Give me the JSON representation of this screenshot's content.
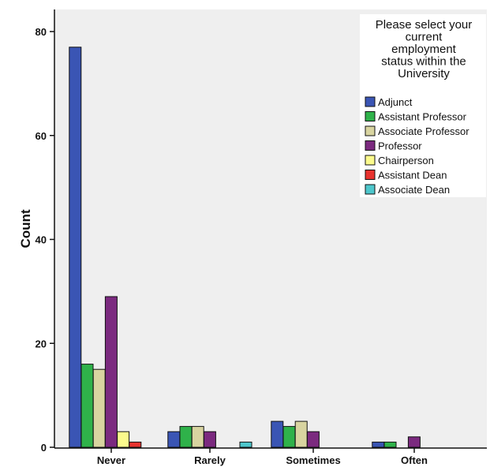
{
  "chart_data": {
    "type": "bar",
    "ylabel": "Count",
    "xlabel": "",
    "ylim": [
      0,
      80
    ],
    "yticks": [
      0,
      20,
      40,
      60,
      80
    ],
    "categories": [
      "Never",
      "Rarely",
      "Sometimes",
      "Often"
    ],
    "legend": {
      "title_lines": [
        "Please select your",
        "current",
        "employment",
        "status within the",
        "University"
      ],
      "placement": "top-right"
    },
    "grid": false,
    "series": [
      {
        "name": "Adjunct",
        "color": "#3a55b4",
        "values": [
          77,
          3,
          5,
          1
        ]
      },
      {
        "name": "Assistant Professor",
        "color": "#2fb24a",
        "values": [
          16,
          4,
          4,
          1
        ]
      },
      {
        "name": "Associate Professor",
        "color": "#d8d4a0",
        "values": [
          15,
          4,
          5,
          0
        ]
      },
      {
        "name": "Professor",
        "color": "#7b2a7f",
        "values": [
          29,
          3,
          3,
          2
        ]
      },
      {
        "name": "Chairperson",
        "color": "#fbfa8c",
        "values": [
          3,
          0,
          0,
          0
        ]
      },
      {
        "name": "Assistant Dean",
        "color": "#e8332f",
        "values": [
          1,
          0,
          0,
          0
        ]
      },
      {
        "name": "Associate Dean",
        "color": "#4ec7cc",
        "values": [
          0,
          1,
          0,
          0
        ]
      }
    ]
  }
}
